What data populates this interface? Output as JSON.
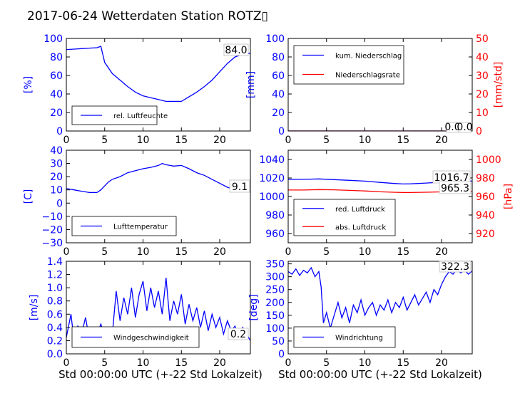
{
  "title": "2017-06-24 Wetterdaten Station ROTZ▯",
  "xlabel": "Std 00:00:00 UTC (+-22 Std Lokalzeit)",
  "colors": {
    "primary": "#0000ff",
    "secondary": "#ff0000"
  },
  "chart_data": [
    {
      "id": "humidity",
      "type": "line",
      "ylabel": "[%]",
      "ylim": [
        0,
        100
      ],
      "yticks": [
        "0",
        "20",
        "40",
        "60",
        "80",
        "100"
      ],
      "xlim": [
        0,
        24
      ],
      "xticks": [
        "0",
        "5",
        "10",
        "15",
        "20"
      ],
      "legend_loc": "lower-left",
      "grid": false,
      "annotations": [
        "84.0"
      ],
      "series": [
        {
          "name": "rel. Luftfeuchte",
          "color": "#0000ff",
          "x": [
            0,
            1,
            2,
            3,
            4,
            4.5,
            5,
            6,
            7,
            8,
            9,
            10,
            11,
            12,
            13,
            14,
            15,
            16,
            17,
            18,
            19,
            20,
            21,
            22,
            23,
            24
          ],
          "y": [
            88,
            88.5,
            89,
            89.5,
            90,
            91.5,
            74,
            62,
            55,
            48,
            42,
            38,
            36,
            34,
            32,
            32,
            32,
            37,
            42,
            48,
            55,
            64,
            73,
            80,
            83,
            84
          ]
        }
      ]
    },
    {
      "id": "rain",
      "type": "line",
      "ylabel": "[mm]",
      "ylim": [
        0,
        100
      ],
      "yticks": [
        "0",
        "20",
        "40",
        "60",
        "80",
        "100"
      ],
      "ylabel2": "[mm/std]",
      "ylim2": [
        0,
        50
      ],
      "yticks2": [
        "0",
        "10",
        "20",
        "30",
        "40",
        "50"
      ],
      "xlim": [
        0,
        24
      ],
      "xticks": [
        "0",
        "5",
        "10",
        "15",
        "20"
      ],
      "legend_loc": "upper-left",
      "grid": false,
      "annotations": [
        "0.0",
        "0.0"
      ],
      "series": [
        {
          "name": "kum. Niederschlag",
          "color": "#0000ff",
          "axis": "left",
          "x": [
            0,
            24
          ],
          "y": [
            0,
            0
          ]
        },
        {
          "name": "Niederschlagsrate",
          "color": "#ff0000",
          "axis": "right",
          "x": [
            0,
            24
          ],
          "y": [
            0,
            0
          ]
        }
      ]
    },
    {
      "id": "temperature",
      "type": "line",
      "ylabel": "[C]",
      "ylim": [
        -30,
        40
      ],
      "yticks": [
        "−30",
        "−20",
        "−10",
        "0",
        "10",
        "20",
        "30",
        "40"
      ],
      "xlim": [
        0,
        24
      ],
      "xticks": [
        "0",
        "5",
        "10",
        "15",
        "20"
      ],
      "legend_loc": "lower-left",
      "grid": false,
      "annotations": [
        "9.1"
      ],
      "series": [
        {
          "name": "Lufttemperatur",
          "color": "#0000ff",
          "x": [
            0,
            1,
            2,
            3,
            4,
            4.5,
            5,
            5.5,
            6,
            7,
            8,
            9,
            10,
            11,
            12,
            12.5,
            13,
            14,
            15,
            16,
            17,
            18,
            19,
            20,
            21,
            22,
            23,
            24
          ],
          "y": [
            11,
            10,
            9,
            8,
            8,
            10,
            13,
            16,
            18,
            20,
            23,
            24.5,
            26,
            27,
            28.5,
            30,
            29,
            28,
            28.5,
            26,
            23,
            21,
            18,
            15,
            12,
            10,
            9.5,
            9.1
          ]
        }
      ]
    },
    {
      "id": "pressure",
      "type": "line",
      "ylabel": "",
      "ylim": [
        950,
        1050
      ],
      "yticks": [
        "960",
        "980",
        "1000",
        "1020",
        "1040"
      ],
      "ylabel2": "[hPa]",
      "ylim2": [
        910,
        1010
      ],
      "yticks2": [
        "920",
        "940",
        "960",
        "980",
        "1000"
      ],
      "xlim": [
        0,
        24
      ],
      "xticks": [
        "0",
        "5",
        "10",
        "15",
        "20"
      ],
      "legend_loc": "lower-left",
      "grid": false,
      "annotations": [
        "1016.7",
        "965.3"
      ],
      "series": [
        {
          "name": "red. Luftdruck",
          "color": "#0000ff",
          "axis": "left",
          "x": [
            0,
            2,
            4,
            6,
            8,
            10,
            12,
            14,
            15,
            16,
            18,
            20,
            22,
            24
          ],
          "y": [
            1018.6,
            1018.5,
            1019,
            1018.2,
            1017.5,
            1016.6,
            1015.2,
            1014,
            1013.5,
            1013.7,
            1014.5,
            1015.5,
            1016.2,
            1016.7
          ]
        },
        {
          "name": "abs. Luftdruck",
          "color": "#ff0000",
          "axis": "right",
          "x": [
            0,
            2,
            4,
            6,
            8,
            10,
            12,
            14,
            15,
            16,
            18,
            20,
            22,
            24
          ],
          "y": [
            967,
            967,
            967.5,
            967.2,
            966.6,
            966,
            965.1,
            964.5,
            964.3,
            964.3,
            964.6,
            965,
            965.2,
            965.3
          ]
        }
      ]
    },
    {
      "id": "wind-speed",
      "type": "line",
      "ylabel": "[m/s]",
      "ylim": [
        0,
        1.4
      ],
      "yticks": [
        "0.0",
        "0.2",
        "0.4",
        "0.6",
        "0.8",
        "1.0",
        "1.2",
        "1.4"
      ],
      "xlim": [
        0,
        24
      ],
      "xticks": [
        "0",
        "5",
        "10",
        "15",
        "20"
      ],
      "legend_loc": "lower-left",
      "grid": false,
      "annotations": [
        "0.2"
      ],
      "series": [
        {
          "name": "Windgeschwindigkeit",
          "color": "#0000ff",
          "x": [
            0,
            0.6,
            1.0,
            1.5,
            2.0,
            2.5,
            3.0,
            3.5,
            4.0,
            4.5,
            5.0,
            5.5,
            6.0,
            6.5,
            7.0,
            7.5,
            8.0,
            8.5,
            9.0,
            9.5,
            10.0,
            10.5,
            11.0,
            11.5,
            12.0,
            12.5,
            13.0,
            13.5,
            14.0,
            14.5,
            15.0,
            15.5,
            16.0,
            16.5,
            17.0,
            17.5,
            18.0,
            18.5,
            19.0,
            19.5,
            20.0,
            20.5,
            21.0,
            21.5,
            22.0,
            22.5,
            23.0,
            23.5,
            24.0
          ],
          "y": [
            0.25,
            0.6,
            0.2,
            0.42,
            0.3,
            0.55,
            0.22,
            0.4,
            0.3,
            0.45,
            0.25,
            0.35,
            0.3,
            0.95,
            0.5,
            0.85,
            0.6,
            1.0,
            0.55,
            0.9,
            1.1,
            0.65,
            1.0,
            0.7,
            0.95,
            0.6,
            1.15,
            0.5,
            0.8,
            0.6,
            0.9,
            0.45,
            0.75,
            0.5,
            0.7,
            0.4,
            0.65,
            0.35,
            0.6,
            0.4,
            0.55,
            0.3,
            0.5,
            0.35,
            0.42,
            0.25,
            0.4,
            0.3,
            0.2
          ]
        }
      ]
    },
    {
      "id": "wind-direction",
      "type": "line",
      "ylabel": "[deg]",
      "ylim": [
        0,
        360
      ],
      "yticks": [
        "0",
        "50",
        "100",
        "150",
        "200",
        "250",
        "300",
        "350"
      ],
      "xlim": [
        0,
        24
      ],
      "xticks": [
        "0",
        "5",
        "10",
        "15",
        "20"
      ],
      "legend_loc": "lower-left",
      "grid": false,
      "annotations": [
        "322.3"
      ],
      "series": [
        {
          "name": "Windrichtung",
          "color": "#0000ff",
          "x": [
            0,
            0.5,
            1.0,
            1.5,
            2.0,
            2.5,
            3.0,
            3.5,
            4.0,
            4.3,
            4.6,
            5.0,
            5.5,
            6.0,
            6.5,
            7.0,
            7.5,
            8.0,
            8.5,
            9.0,
            9.5,
            10.0,
            10.5,
            11.0,
            11.5,
            12.0,
            12.5,
            13.0,
            13.5,
            14.0,
            14.5,
            15.0,
            15.5,
            16.0,
            16.5,
            17.0,
            17.5,
            18.0,
            18.5,
            19.0,
            19.5,
            20.0,
            20.5,
            21.0,
            21.5,
            22.0,
            22.5,
            23.0,
            23.5,
            24.0
          ],
          "y": [
            320,
            310,
            330,
            305,
            325,
            315,
            335,
            300,
            320,
            260,
            120,
            160,
            100,
            150,
            200,
            140,
            180,
            120,
            190,
            160,
            210,
            150,
            180,
            200,
            150,
            190,
            170,
            210,
            160,
            200,
            180,
            220,
            170,
            200,
            230,
            190,
            215,
            240,
            200,
            250,
            230,
            270,
            300,
            320,
            310,
            330,
            315,
            325,
            310,
            322
          ]
        }
      ]
    }
  ]
}
